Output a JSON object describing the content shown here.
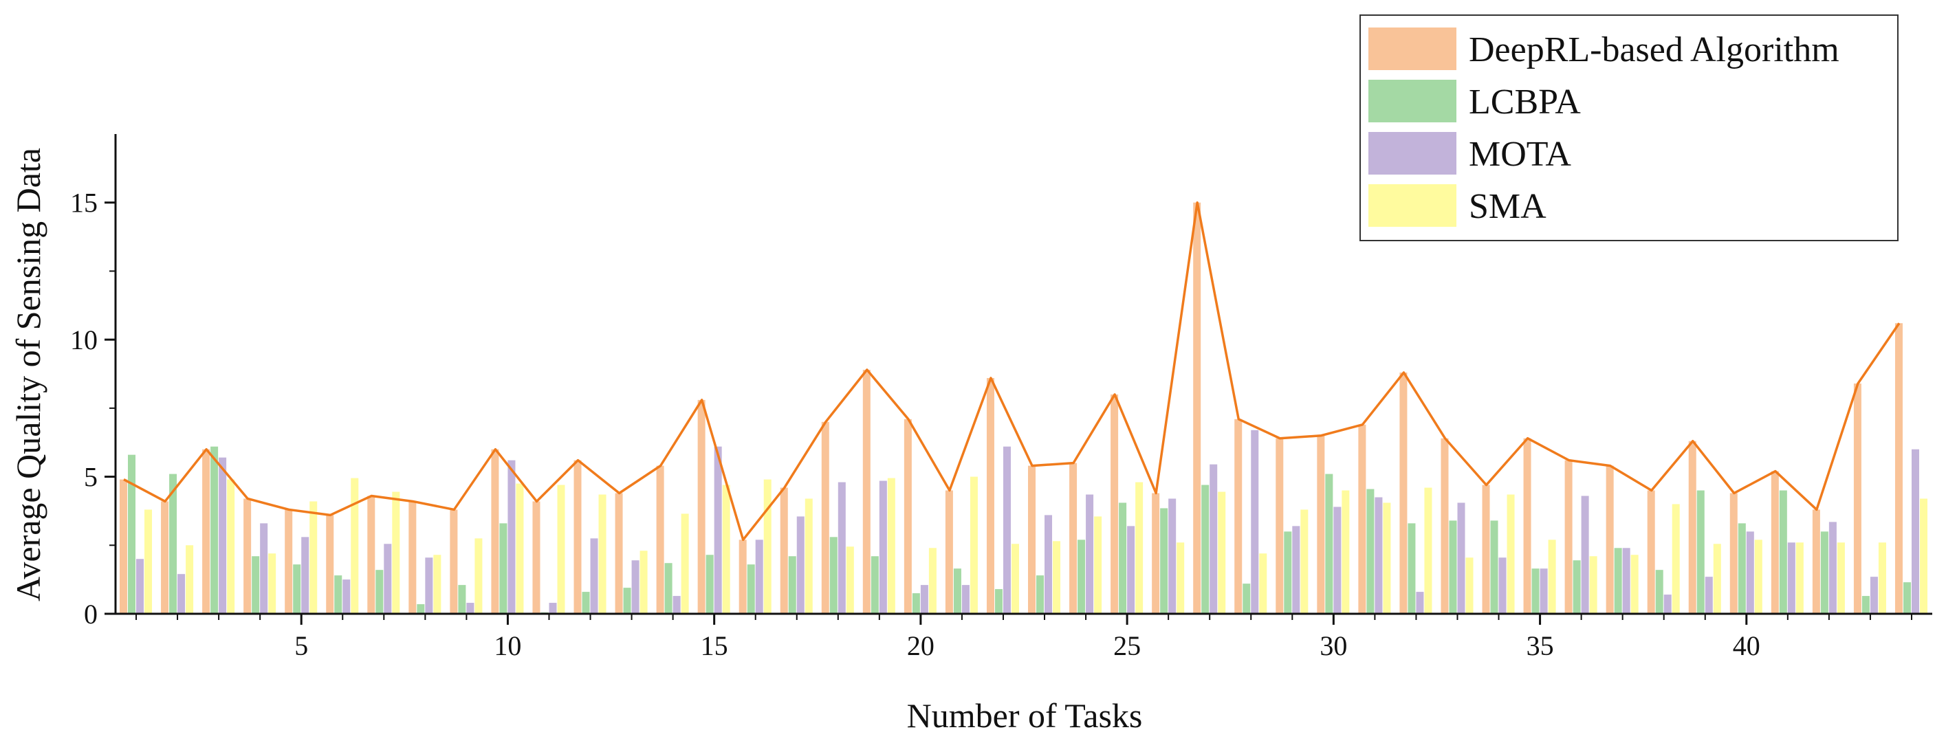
{
  "chart_data": {
    "type": "bar",
    "xlabel": "Number of Tasks",
    "ylabel": "Average Quality of Sensing Data",
    "xlim": [
      0.5,
      44.5
    ],
    "ylim": [
      0,
      17.5
    ],
    "x_ticks": [
      5,
      10,
      15,
      20,
      25,
      30,
      35,
      40
    ],
    "y_ticks": [
      0,
      5,
      10,
      15
    ],
    "legend_position": "top-right",
    "x": [
      1,
      2,
      3,
      4,
      5,
      6,
      7,
      8,
      9,
      10,
      11,
      12,
      13,
      14,
      15,
      16,
      17,
      18,
      19,
      20,
      21,
      22,
      23,
      24,
      25,
      26,
      27,
      28,
      29,
      30,
      31,
      32,
      33,
      34,
      35,
      36,
      37,
      38,
      39,
      40,
      41,
      42,
      43,
      44
    ],
    "series": [
      {
        "name": "DeepRL-based Algorithm",
        "color": "#f9c398",
        "values": [
          4.9,
          4.1,
          6.0,
          4.2,
          3.8,
          3.6,
          4.3,
          4.1,
          3.8,
          6.0,
          4.1,
          5.6,
          4.4,
          5.4,
          7.8,
          2.7,
          4.6,
          7.0,
          8.9,
          7.1,
          4.5,
          8.6,
          5.4,
          5.5,
          8.0,
          4.4,
          15.0,
          7.1,
          6.4,
          6.5,
          6.9,
          8.8,
          6.4,
          4.7,
          6.4,
          5.6,
          5.4,
          4.5,
          6.3,
          4.4,
          5.2,
          3.8,
          8.4,
          10.6
        ]
      },
      {
        "name": "LCBPA",
        "color": "#a4d9a4",
        "values": [
          5.8,
          5.1,
          6.1,
          2.1,
          1.8,
          1.4,
          1.6,
          0.35,
          1.05,
          3.3,
          0.05,
          0.8,
          0.95,
          1.85,
          2.15,
          1.8,
          2.1,
          2.8,
          2.1,
          0.75,
          1.65,
          0.9,
          1.4,
          2.7,
          4.05,
          3.85,
          4.7,
          1.1,
          3.0,
          5.1,
          4.55,
          3.3,
          3.4,
          3.4,
          1.65,
          1.95,
          2.4,
          1.6,
          4.5,
          3.3,
          4.5,
          3.0,
          0.65,
          1.15
        ]
      },
      {
        "name": "MOTA",
        "color": "#c2b3da",
        "values": [
          2.0,
          1.45,
          5.7,
          3.3,
          2.8,
          1.25,
          2.55,
          2.05,
          0.4,
          5.6,
          0.4,
          2.75,
          1.95,
          0.65,
          6.1,
          2.7,
          3.55,
          4.8,
          4.85,
          1.05,
          1.05,
          6.1,
          3.6,
          4.35,
          3.2,
          4.2,
          5.45,
          6.7,
          3.2,
          3.9,
          4.25,
          0.8,
          4.05,
          2.05,
          1.65,
          4.3,
          2.4,
          0.7,
          1.35,
          3.0,
          2.6,
          3.35,
          1.35,
          6.0
        ]
      },
      {
        "name": "SMA",
        "color": "#fffb9e",
        "values": [
          3.8,
          2.5,
          4.9,
          2.2,
          4.1,
          4.95,
          4.45,
          2.15,
          2.75,
          4.75,
          4.7,
          4.35,
          2.3,
          3.65,
          4.7,
          4.9,
          4.2,
          2.45,
          4.95,
          2.4,
          5.0,
          2.55,
          2.65,
          3.55,
          4.8,
          2.6,
          4.45,
          2.2,
          3.8,
          4.5,
          4.05,
          4.6,
          2.05,
          4.35,
          2.7,
          2.1,
          2.15,
          4.0,
          2.55,
          2.7,
          2.6,
          2.6,
          2.6,
          4.2
        ]
      }
    ],
    "line": {
      "series": "DeepRL-based Algorithm",
      "color": "#f07b1c"
    }
  }
}
